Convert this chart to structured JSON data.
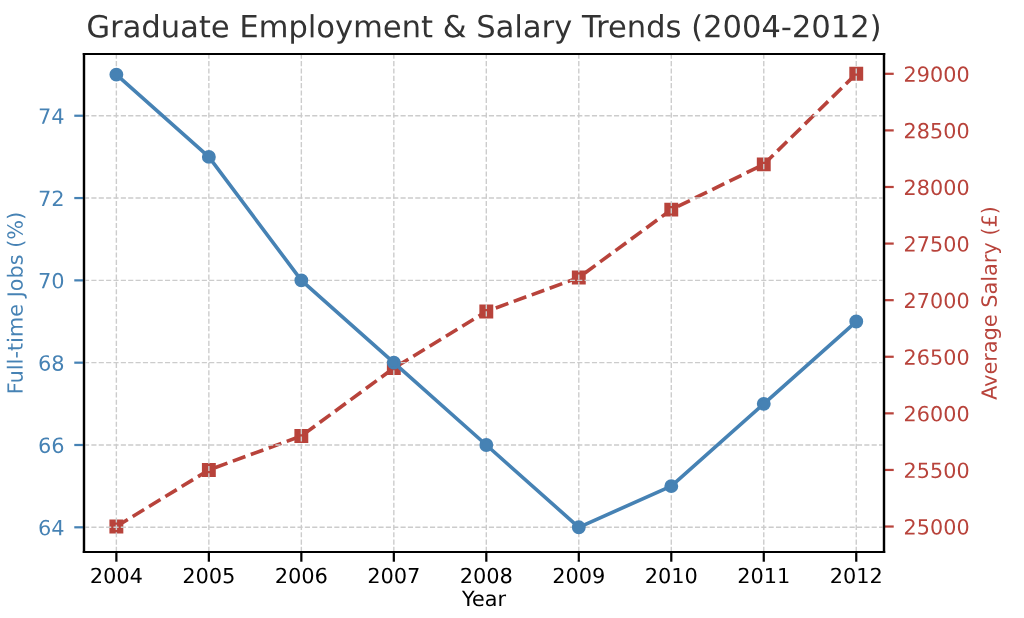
{
  "chart_data": {
    "type": "line",
    "title": "Graduate Employment & Salary Trends (2004-2012)",
    "xlabel": "Year",
    "ylabel": "Full-time Jobs (%)",
    "y2label": "Average Salary (£)",
    "x": [
      2004,
      2005,
      2006,
      2007,
      2008,
      2009,
      2010,
      2011,
      2012
    ],
    "series": [
      {
        "color": "#4682b4",
        "marker": "circle",
        "line_style": "solid",
        "values": [
          75,
          73,
          70,
          68,
          66,
          64,
          65,
          67,
          69
        ]
      },
      {
        "color": "#b8433b",
        "marker": "square",
        "line_style": "dashed",
        "axis": "y2",
        "values": [
          25000,
          25500,
          25800,
          26400,
          26900,
          27200,
          27800,
          28200,
          29000
        ]
      }
    ],
    "xlim": [
      2003.65,
      2012.3
    ],
    "xticks": [
      2004,
      2005,
      2006,
      2007,
      2008,
      2009,
      2010,
      2011,
      2012
    ],
    "ylim": [
      63.4,
      75.5
    ],
    "yticks": [
      64,
      66,
      68,
      70,
      72,
      74
    ],
    "y2lim": [
      24775,
      29175
    ],
    "y2ticks": [
      25000,
      25500,
      26000,
      26500,
      27000,
      27500,
      28000,
      28500,
      29000
    ],
    "grid": true,
    "legend": false
  }
}
